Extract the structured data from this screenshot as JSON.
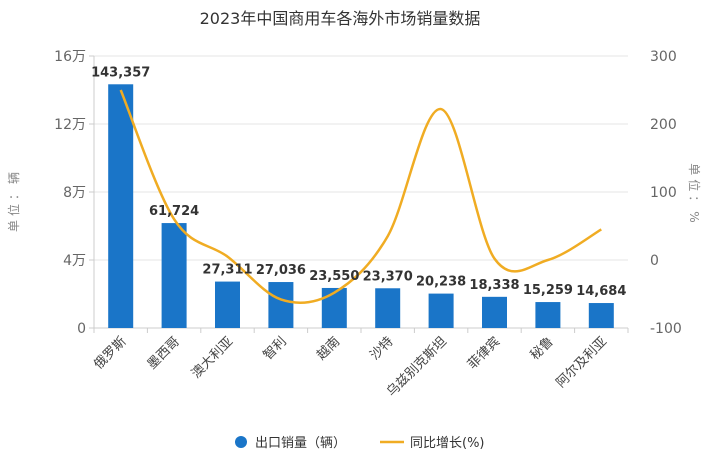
{
  "chart_data": {
    "type": "bar",
    "title": "2023年中国商用车各海外市场销量数据",
    "categories": [
      "俄罗斯",
      "墨西哥",
      "澳大利亚",
      "智利",
      "越南",
      "沙特",
      "乌兹别克斯坦",
      "菲律宾",
      "秘鲁",
      "阿尔及利亚"
    ],
    "series": [
      {
        "name": "出口销量（辆）",
        "type": "bar",
        "axis": "left",
        "color": "#1a75c8",
        "values": [
          143357,
          61724,
          27311,
          27036,
          23550,
          23370,
          20238,
          18338,
          15259,
          14684
        ],
        "labels": [
          "143,357",
          "61,724",
          "27,311",
          "27,036",
          "23,550",
          "23,370",
          "20,238",
          "18,338",
          "15,259",
          "14,684"
        ]
      },
      {
        "name": "同比增长(%)",
        "type": "line",
        "axis": "right",
        "color": "#f0ac23",
        "values": [
          250,
          60,
          5,
          -58,
          -48,
          35,
          222,
          2,
          0,
          45
        ]
      }
    ],
    "y_left": {
      "label": "单位：辆",
      "ylim": [
        0,
        160000
      ],
      "ticks": [
        0,
        40000,
        80000,
        120000,
        160000
      ],
      "tick_labels": [
        "0",
        "4万",
        "8万",
        "12万",
        "16万"
      ]
    },
    "y_right": {
      "label": "单位：%",
      "ylim": [
        -100,
        300
      ],
      "ticks": [
        -100,
        0,
        100,
        200,
        300
      ],
      "tick_labels": [
        "-100",
        "0",
        "100",
        "200",
        "300"
      ]
    },
    "grid": true,
    "legend": "bottom-center"
  }
}
